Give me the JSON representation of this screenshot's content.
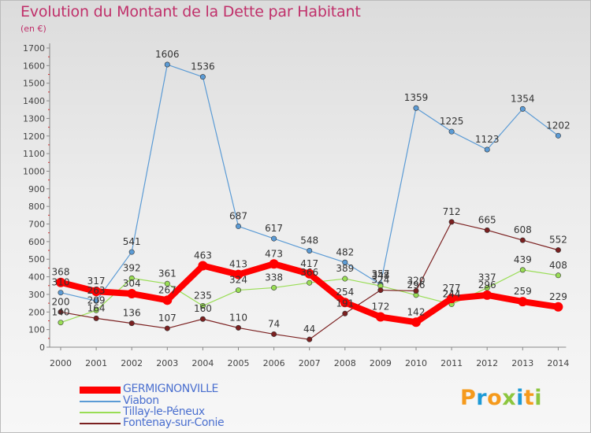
{
  "chart_data": {
    "type": "line",
    "title": "Evolution du Montant de la Dette par Habitant",
    "subtitle": "(en €)",
    "x": [
      "2000",
      "2001",
      "2002",
      "2003",
      "2004",
      "2005",
      "2006",
      "2007",
      "2008",
      "2009",
      "2010",
      "2011",
      "2012",
      "2013",
      "2014"
    ],
    "y_ticks": [
      0,
      100,
      200,
      300,
      400,
      500,
      600,
      700,
      800,
      900,
      1000,
      1100,
      1200,
      1300,
      1400,
      1500,
      1600,
      1700
    ],
    "ylim": [
      0,
      1700
    ],
    "grid": false,
    "legend_position": "bottom-left",
    "series": [
      {
        "name": "GERMIGNONVILLE",
        "color": "#ff0000",
        "values": [
          368,
          317,
          304,
          267,
          463,
          413,
          473,
          417,
          254,
          172,
          142,
          277,
          296,
          259,
          229
        ],
        "labels": [
          "368",
          "317",
          "304",
          "",
          "463",
          "413",
          "473",
          "417",
          "254",
          "172",
          "142",
          "277",
          "296",
          "259",
          "229"
        ]
      },
      {
        "name": "Viabon",
        "color": "#5b9bd5",
        "values": [
          310,
          263,
          541,
          1606,
          1536,
          687,
          617,
          548,
          482,
          357,
          1359,
          1225,
          1123,
          1354,
          1202
        ],
        "labels": [
          "",
          "",
          "541",
          "1606",
          "1536",
          "687",
          "617",
          "548",
          "482",
          "357",
          "1359",
          "1225",
          "1123",
          "1354",
          "1202"
        ]
      },
      {
        "name": "Tillay-le-Péneux",
        "color": "#99dd55",
        "values": [
          140,
          209,
          392,
          361,
          235,
          324,
          338,
          366,
          389,
          348,
          296,
          244,
          337,
          439,
          408
        ],
        "labels": [
          "",
          "",
          "392",
          "361",
          "235",
          "324",
          "338",
          "",
          "389",
          "",
          "",
          "244",
          "337",
          "439",
          "408"
        ]
      },
      {
        "name": "Fontenay-sur-Conie",
        "color": "#7b2020",
        "values": [
          200,
          164,
          136,
          107,
          160,
          110,
          74,
          44,
          191,
          324,
          320,
          712,
          665,
          608,
          552
        ],
        "labels": [
          "200",
          "164",
          "136",
          "107",
          "160",
          "110",
          "74",
          "44",
          "",
          "",
          "320",
          "712",
          "665",
          "608",
          "552"
        ]
      }
    ],
    "overlap_labels": [
      {
        "text": "310",
        "x": "2000",
        "y": 310
      },
      {
        "text": "140",
        "x": "2000",
        "y": 140
      },
      {
        "text": "263",
        "x": "2001",
        "y": 263
      },
      {
        "text": "209",
        "x": "2001",
        "y": 209
      },
      {
        "text": "267",
        "x": "2003",
        "y": 267
      },
      {
        "text": "366",
        "x": "2007",
        "y": 366
      },
      {
        "text": "191",
        "x": "2008",
        "y": 191
      },
      {
        "text": "348",
        "x": "2009",
        "y": 348
      },
      {
        "text": "324",
        "x": "2009",
        "y": 324
      },
      {
        "text": "296",
        "x": "2010",
        "y": 296
      },
      {
        "text": "244",
        "x": "2011",
        "y": 244
      }
    ]
  },
  "brand": {
    "letters": [
      {
        "ch": "P",
        "color": "#f59a1c"
      },
      {
        "ch": "r",
        "color": "#1d9ad6"
      },
      {
        "ch": "o",
        "color": "#f59a1c"
      },
      {
        "ch": "x",
        "color": "#8cc63f"
      },
      {
        "ch": "i",
        "color": "#1d9ad6"
      },
      {
        "ch": "t",
        "color": "#f59a1c"
      },
      {
        "ch": "i",
        "color": "#8cc63f"
      }
    ]
  }
}
